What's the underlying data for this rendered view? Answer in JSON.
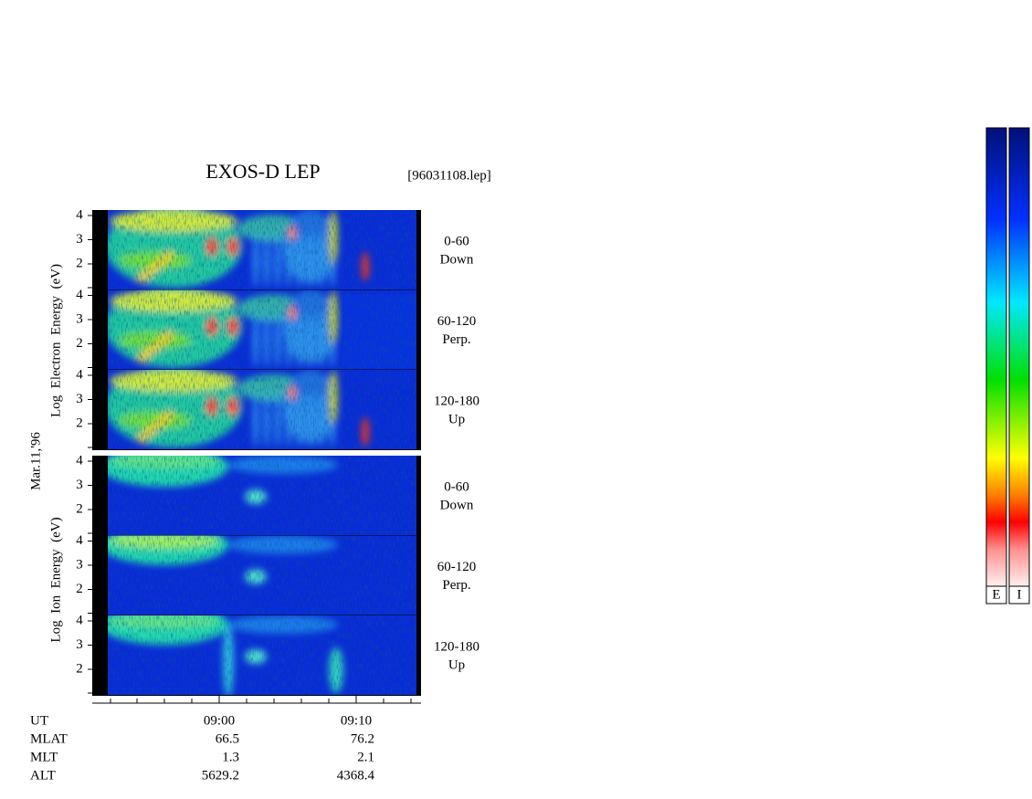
{
  "header": {
    "title": "EXOS-D LEP",
    "file": "[96031108.lep]"
  },
  "date": "Mar.11,'96",
  "electron": {
    "axis_label": "Log  Electron  Energy  (eV)",
    "yticks": [
      4,
      3,
      2
    ],
    "panels": [
      {
        "angle": "0-60",
        "direction": "Down"
      },
      {
        "angle": "60-120",
        "direction": "Perp."
      },
      {
        "angle": "120-180",
        "direction": "Up"
      }
    ]
  },
  "ion": {
    "axis_label": "Log  Ion  Energy  (eV)",
    "yticks": [
      4,
      3,
      2
    ],
    "panels": [
      {
        "angle": "0-60",
        "direction": "Down"
      },
      {
        "angle": "60-120",
        "direction": "Perp."
      },
      {
        "angle": "120-180",
        "direction": "Up"
      }
    ]
  },
  "time_axis": {
    "label": "UT",
    "ticks": [
      "09:00",
      "09:10"
    ]
  },
  "orbit": {
    "rows": [
      {
        "label": "MLAT",
        "values": [
          66.5,
          76.2
        ]
      },
      {
        "label": "MLT",
        "values": [
          1.3,
          2.1
        ]
      },
      {
        "label": "ALT",
        "values": [
          5629.2,
          4368.4
        ]
      }
    ]
  },
  "colorbars": [
    "E",
    "I"
  ]
}
